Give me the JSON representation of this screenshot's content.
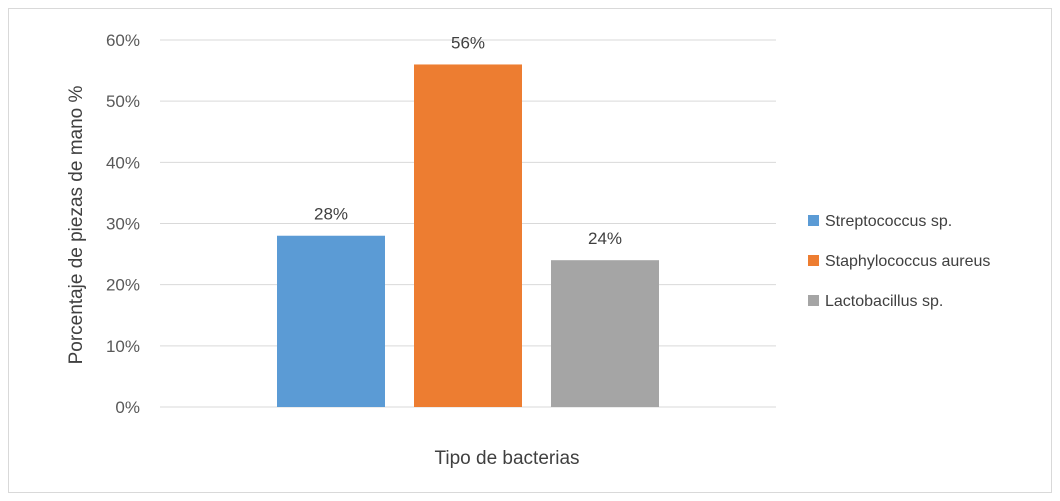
{
  "chart_data": {
    "type": "bar",
    "title": "",
    "xlabel": "Tipo de bacterias",
    "ylabel": "Porcentaje de piezas de mano %",
    "ylim": [
      0,
      60
    ],
    "y_ticks": [
      0,
      10,
      20,
      30,
      40,
      50,
      60
    ],
    "y_tick_labels": [
      "0%",
      "10%",
      "20%",
      "30%",
      "40%",
      "50%",
      "60%"
    ],
    "grid": true,
    "legend_position": "right",
    "series": [
      {
        "name": "Streptococcus sp.",
        "value": 28,
        "label": "28%",
        "color": "#5b9bd5"
      },
      {
        "name": "Staphylococcus aureus",
        "value": 56,
        "label": "56%",
        "color": "#ed7d31"
      },
      {
        "name": "Lactobacillus sp.",
        "value": 24,
        "label": "24%",
        "color": "#a5a5a5"
      }
    ]
  }
}
